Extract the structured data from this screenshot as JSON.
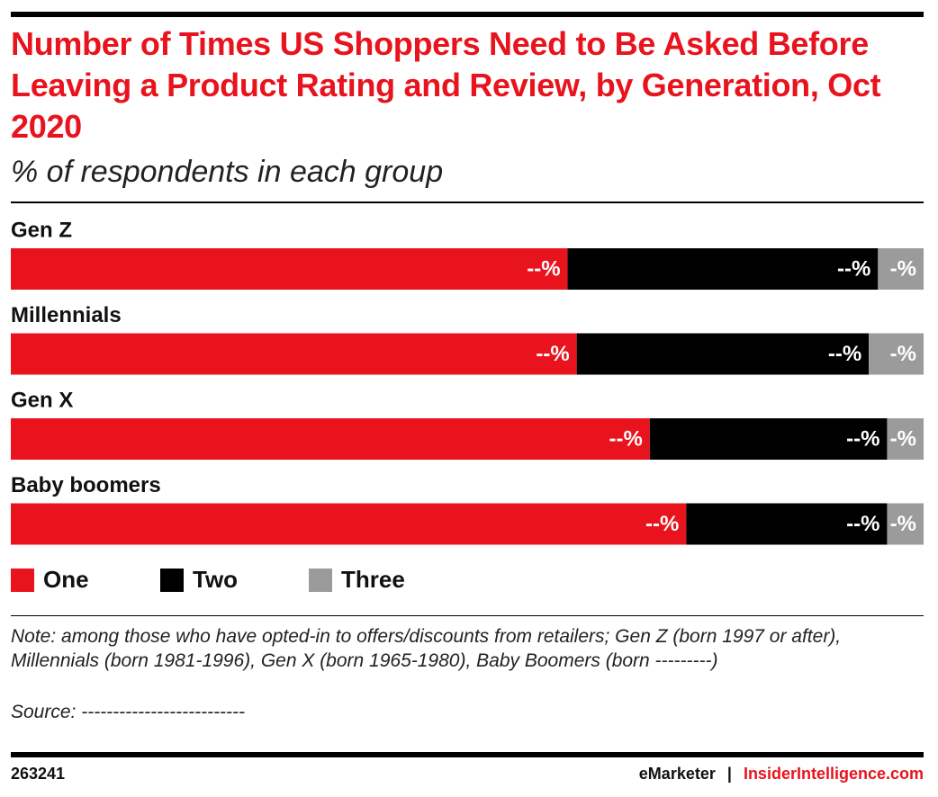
{
  "chart_data": {
    "type": "stacked-bar",
    "orientation": "horizontal",
    "title": "Number of Times US Shoppers Need to Be Asked Before Leaving a Product Rating and Review, by Generation, Oct 2020",
    "subtitle": "% of respondents in each group",
    "categories": [
      "Gen Z",
      "Millennials",
      "Gen X",
      "Baby boomers"
    ],
    "xlim": [
      0,
      100
    ],
    "series": [
      {
        "name": "One",
        "color": "#e8131d",
        "values": [
          61,
          62,
          70,
          74
        ],
        "value_labels": [
          "--%",
          "--%",
          "--%",
          "--%"
        ]
      },
      {
        "name": "Two",
        "color": "#000000",
        "values": [
          34,
          32,
          26,
          22
        ],
        "value_labels": [
          "--%",
          "--%",
          "--%",
          "--%"
        ]
      },
      {
        "name": "Three",
        "color": "#9b9b9b",
        "values": [
          5,
          6,
          4,
          4
        ],
        "value_labels": [
          "-%",
          "-%",
          "-%",
          "-%"
        ]
      }
    ],
    "note": "Note: among those who have opted-in to offers/discounts from retailers; Gen Z (born 1997 or after), Millennials (born 1981-1996), Gen X (born 1965-1980), Baby Boomers (born ---------)",
    "source": "Source: --------------------------",
    "chart_id": "263241",
    "brand": "eMarketer",
    "separator": "|",
    "site": "InsiderIntelligence.com"
  }
}
